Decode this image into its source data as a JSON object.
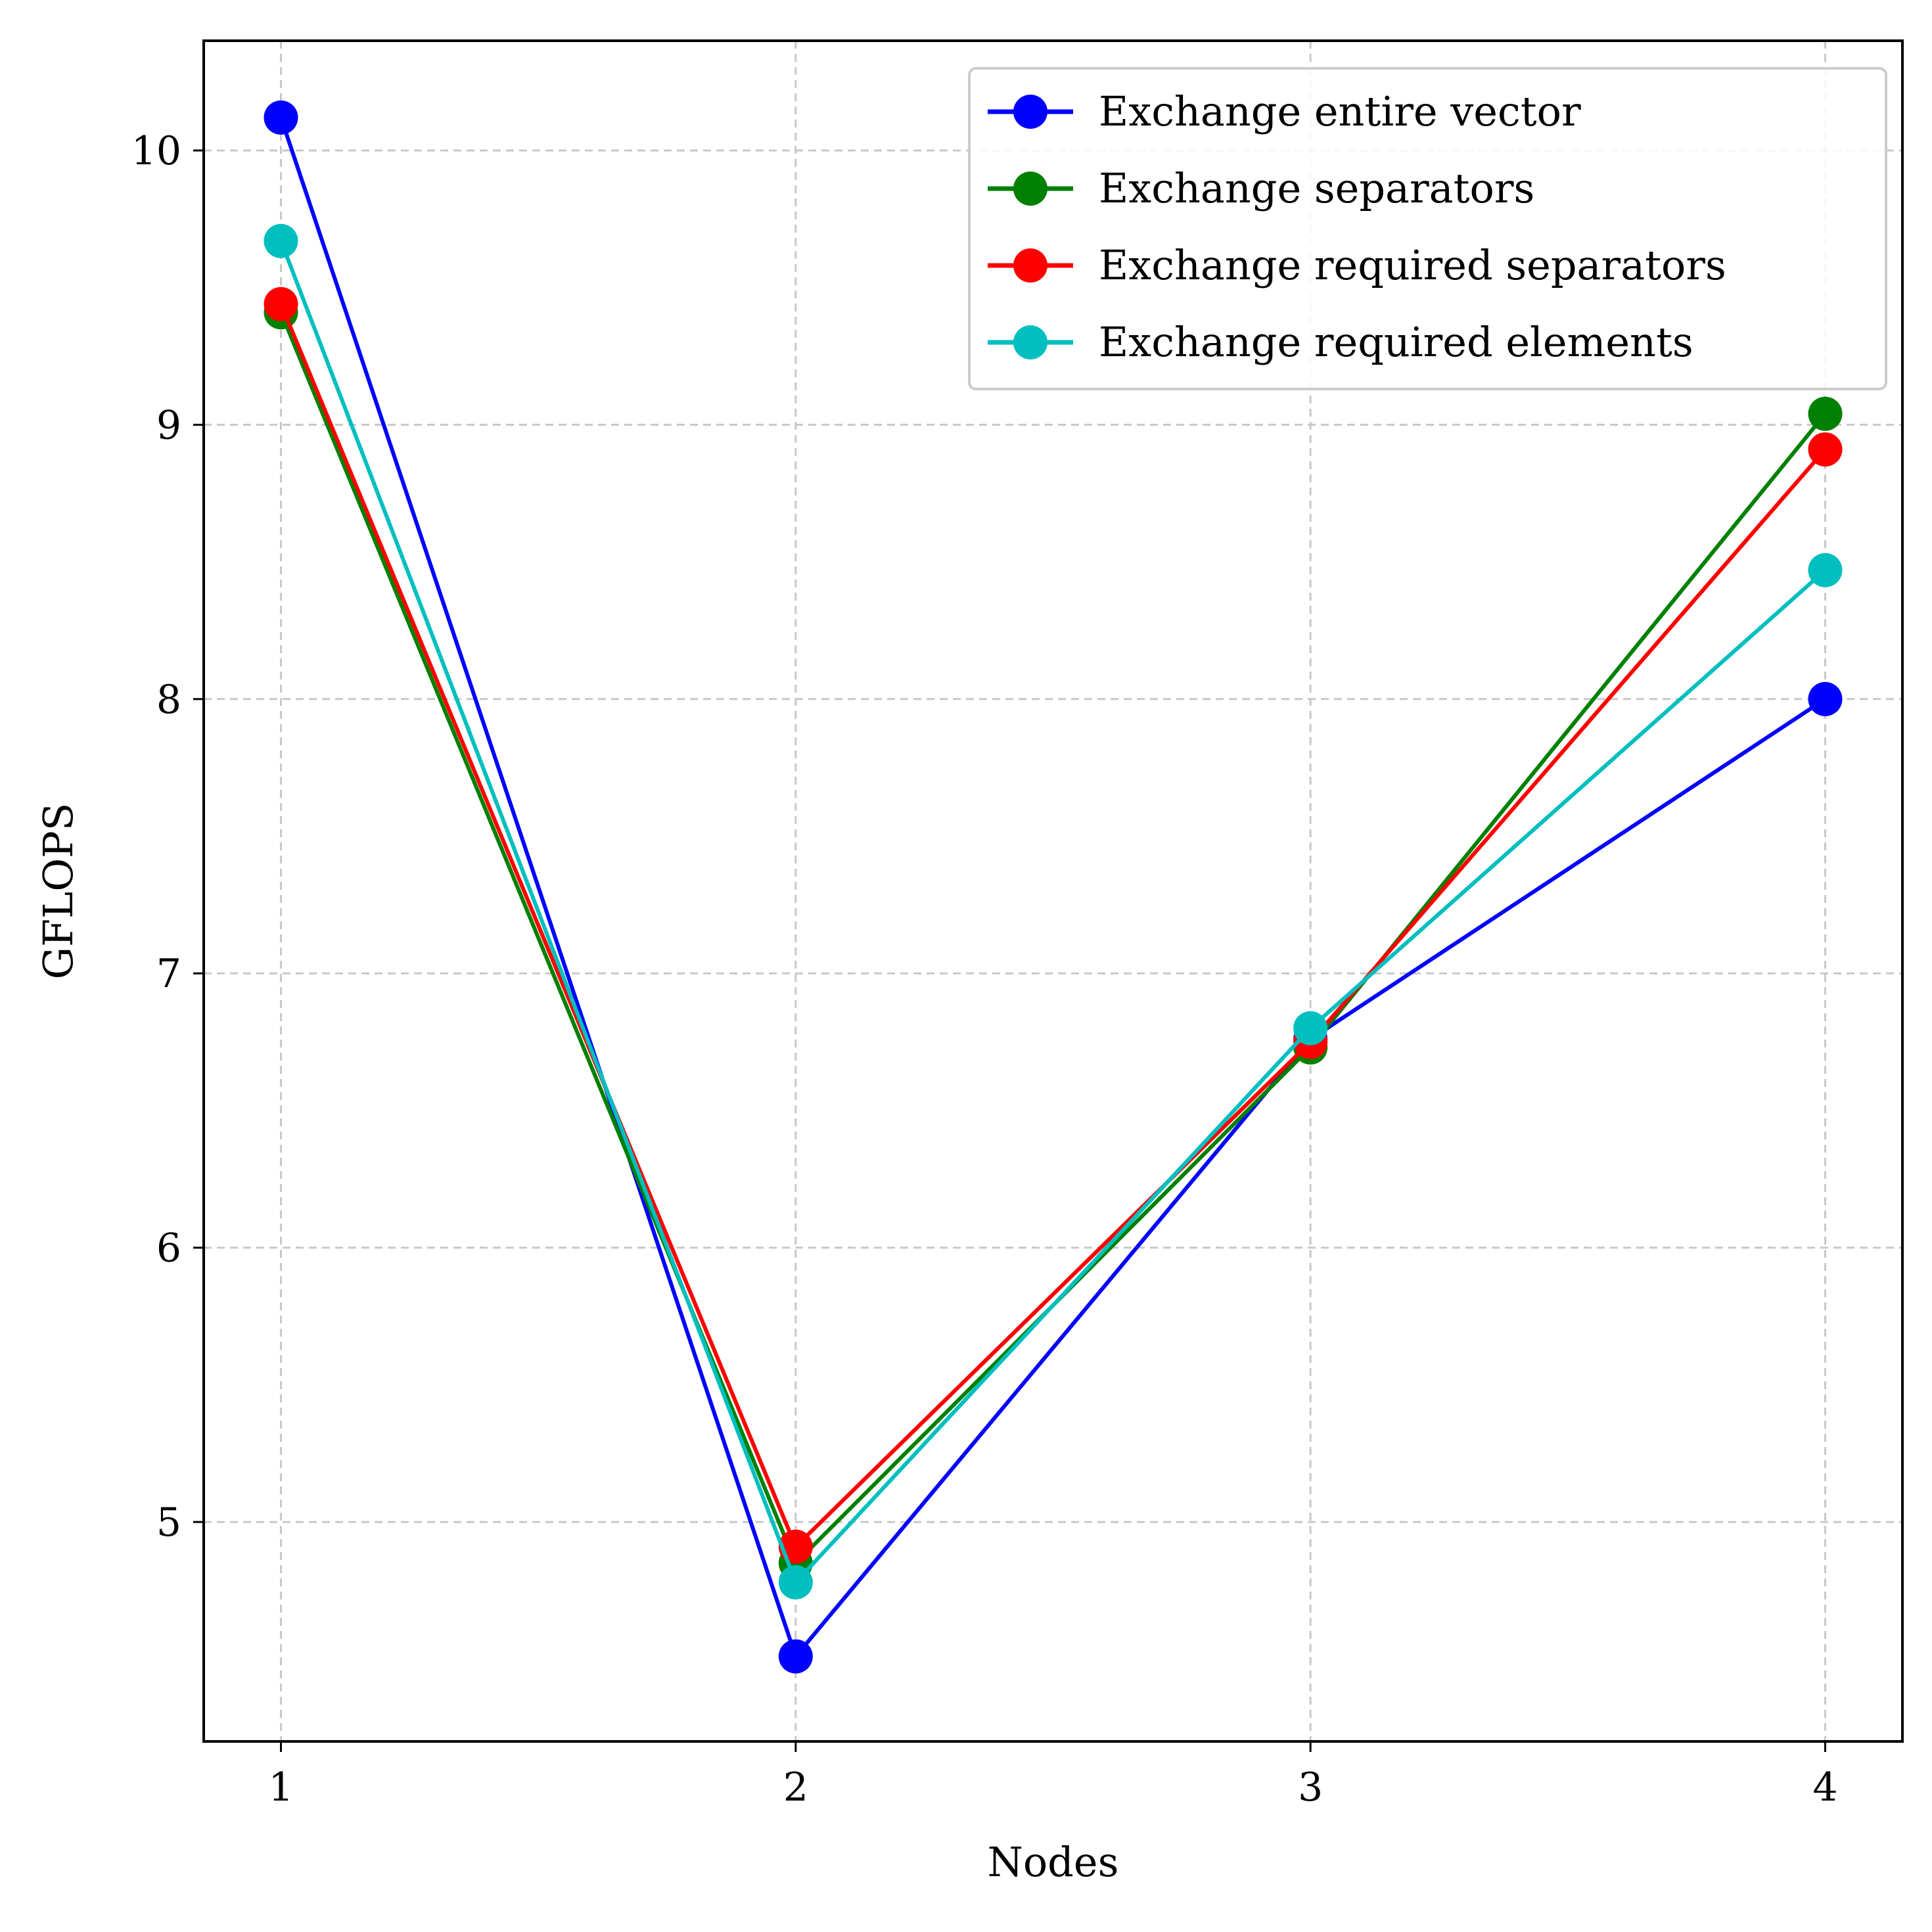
{
  "chart_data": {
    "type": "line",
    "xlabel": "Nodes",
    "ylabel": "GFLOPS",
    "x": [
      1,
      2,
      3,
      4
    ],
    "xticks": [
      "1",
      "2",
      "3",
      "4"
    ],
    "yticks": [
      "5",
      "6",
      "7",
      "8",
      "9",
      "10"
    ],
    "xlim": [
      0.85,
      4.15
    ],
    "ylim": [
      4.2,
      10.4
    ],
    "grid": true,
    "legend_position": "top-right",
    "series": [
      {
        "name": "Exchange entire vector",
        "color": "#0000ff",
        "values": [
          10.12,
          4.51,
          6.76,
          8.0
        ]
      },
      {
        "name": "Exchange separators",
        "color": "#008000",
        "values": [
          9.41,
          4.85,
          6.73,
          9.04
        ]
      },
      {
        "name": "Exchange required separators",
        "color": "#ff0000",
        "values": [
          9.44,
          4.91,
          6.75,
          8.91
        ]
      },
      {
        "name": "Exchange required elements",
        "color": "#00bfbf",
        "values": [
          9.67,
          4.78,
          6.8,
          8.47
        ]
      }
    ]
  }
}
